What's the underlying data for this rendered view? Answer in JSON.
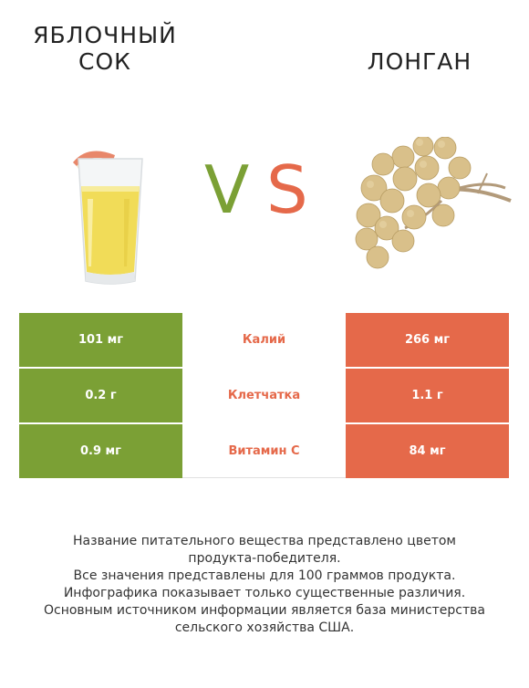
{
  "header": {
    "left_title": "ЯБЛОЧНЫЙ СОК",
    "right_title": "ЛОНГАН",
    "vs_v": "V",
    "vs_s": "S"
  },
  "colors": {
    "left_product": "#7ba035",
    "right_product": "#e5694a"
  },
  "images": {
    "left": "apple-juice-glass-icon",
    "right": "longan-fruit-cluster-icon"
  },
  "rows": [
    {
      "left_value": "101 мг",
      "nutrient": "Калий",
      "right_value": "266 мг"
    },
    {
      "left_value": "0.2 г",
      "nutrient": "Клетчатка",
      "right_value": "1.1 г"
    },
    {
      "left_value": "0.9 мг",
      "nutrient": "Витамин С",
      "right_value": "84 мг"
    }
  ],
  "footnote": [
    "Название питательного вещества представлено цветом",
    "продукта-победителя.",
    "Все значения представлены для 100 граммов продукта.",
    "Инфографика показывает только существенные различия.",
    "Основным источником информации является база министерства",
    "сельского хозяйства США."
  ]
}
